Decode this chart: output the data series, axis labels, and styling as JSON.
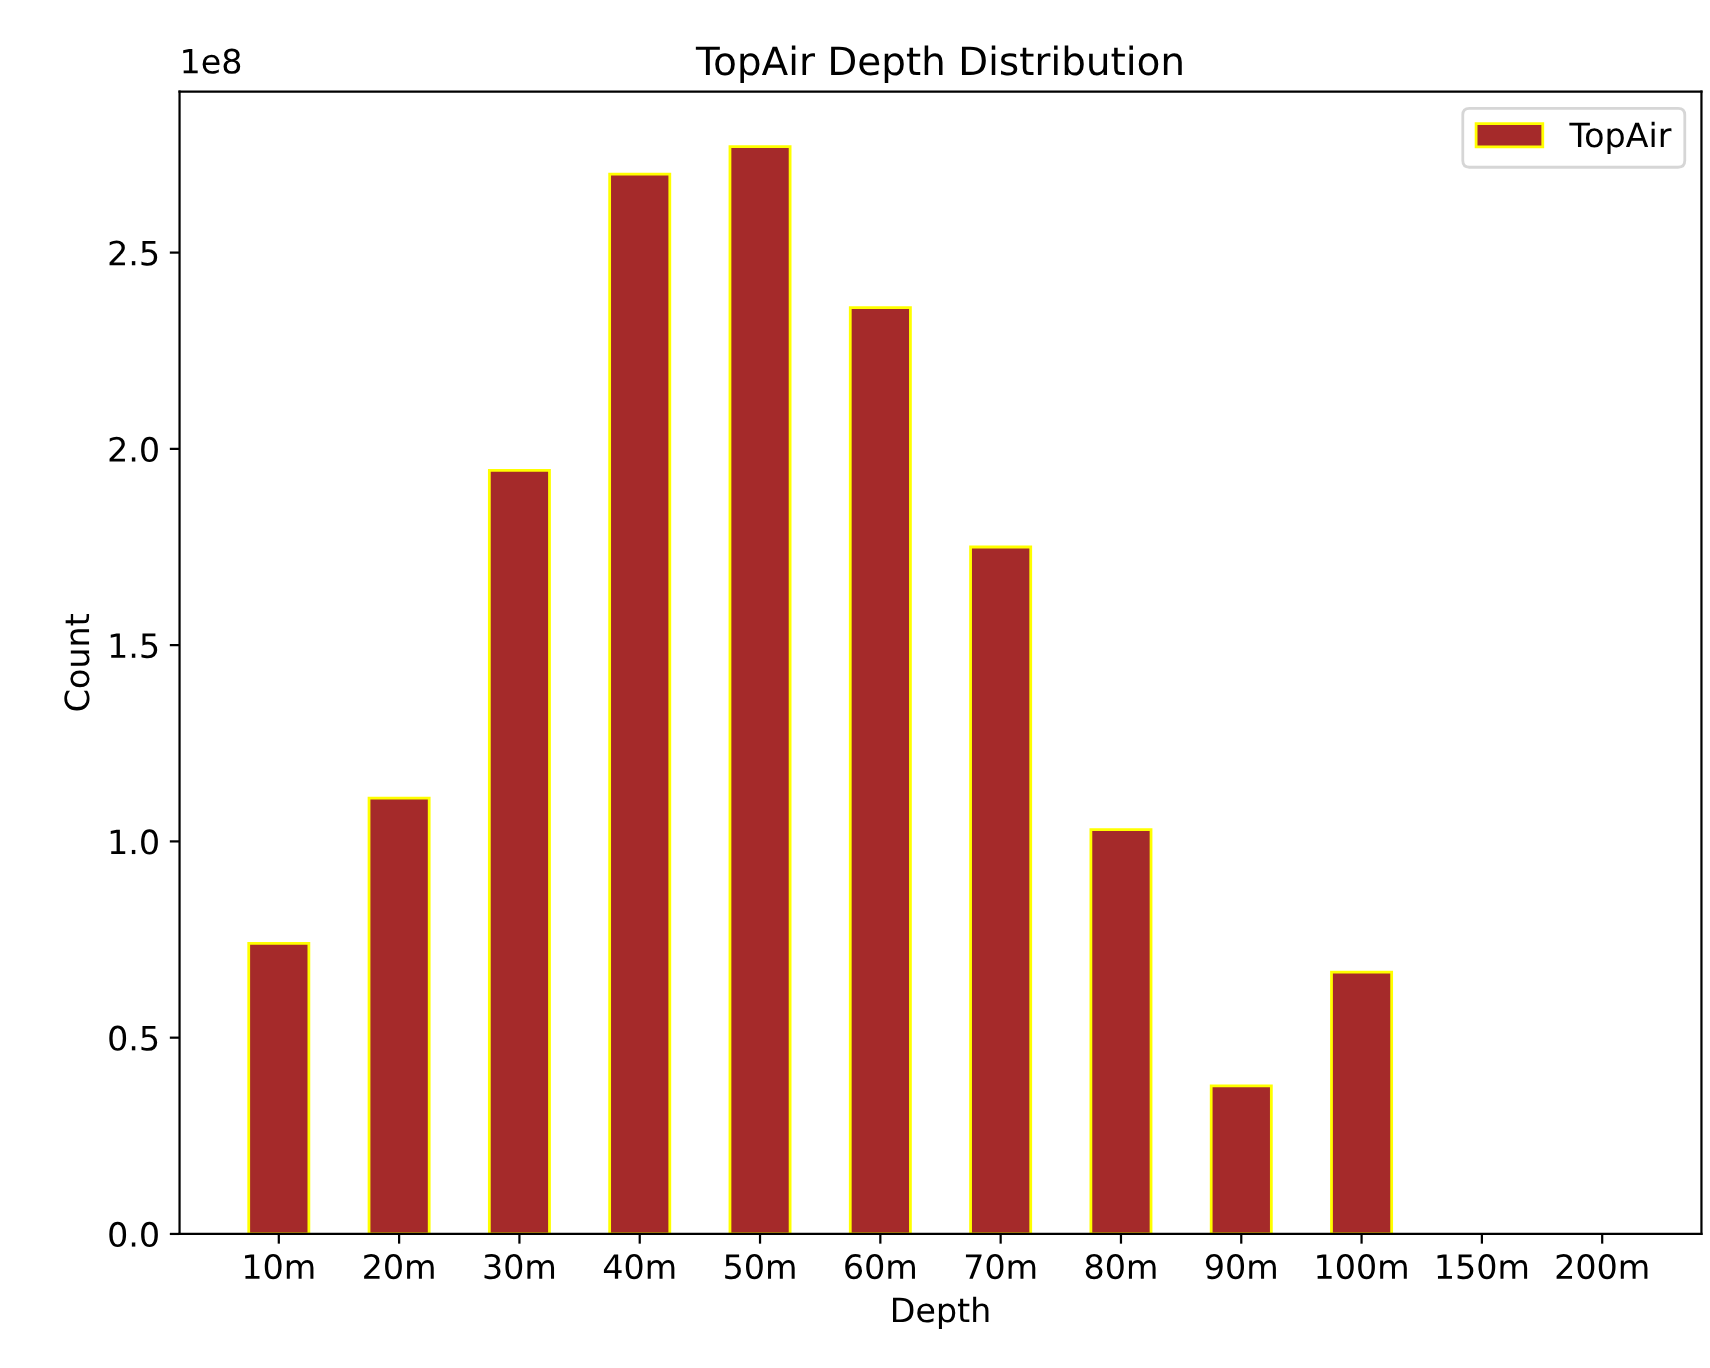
{
  "chart_data": {
    "type": "bar",
    "title": "TopAir Depth Distribution",
    "xlabel": "Depth",
    "ylabel": "Count",
    "categories": [
      "10m",
      "20m",
      "30m",
      "40m",
      "50m",
      "60m",
      "70m",
      "80m",
      "90m",
      "100m",
      "150m",
      "200m"
    ],
    "series": [
      {
        "name": "TopAir",
        "color": "#a52a2a",
        "values": [
          0.74,
          1.11,
          1.945,
          2.7,
          2.77,
          2.36,
          1.75,
          1.03,
          0.377,
          0.667,
          0,
          0
        ]
      }
    ],
    "ylim": [
      0,
      2.91
    ],
    "yticks": [
      {
        "value": 0,
        "label": "0.0"
      },
      {
        "value": 0.5,
        "label": "0.5"
      },
      {
        "value": 1,
        "label": "1.0"
      },
      {
        "value": 1.5,
        "label": "1.5"
      },
      {
        "value": 2,
        "label": "2.0"
      },
      {
        "value": 2.5,
        "label": "2.5"
      }
    ],
    "annotations": [
      "1e8"
    ],
    "legend": "top right",
    "grid": false
  }
}
